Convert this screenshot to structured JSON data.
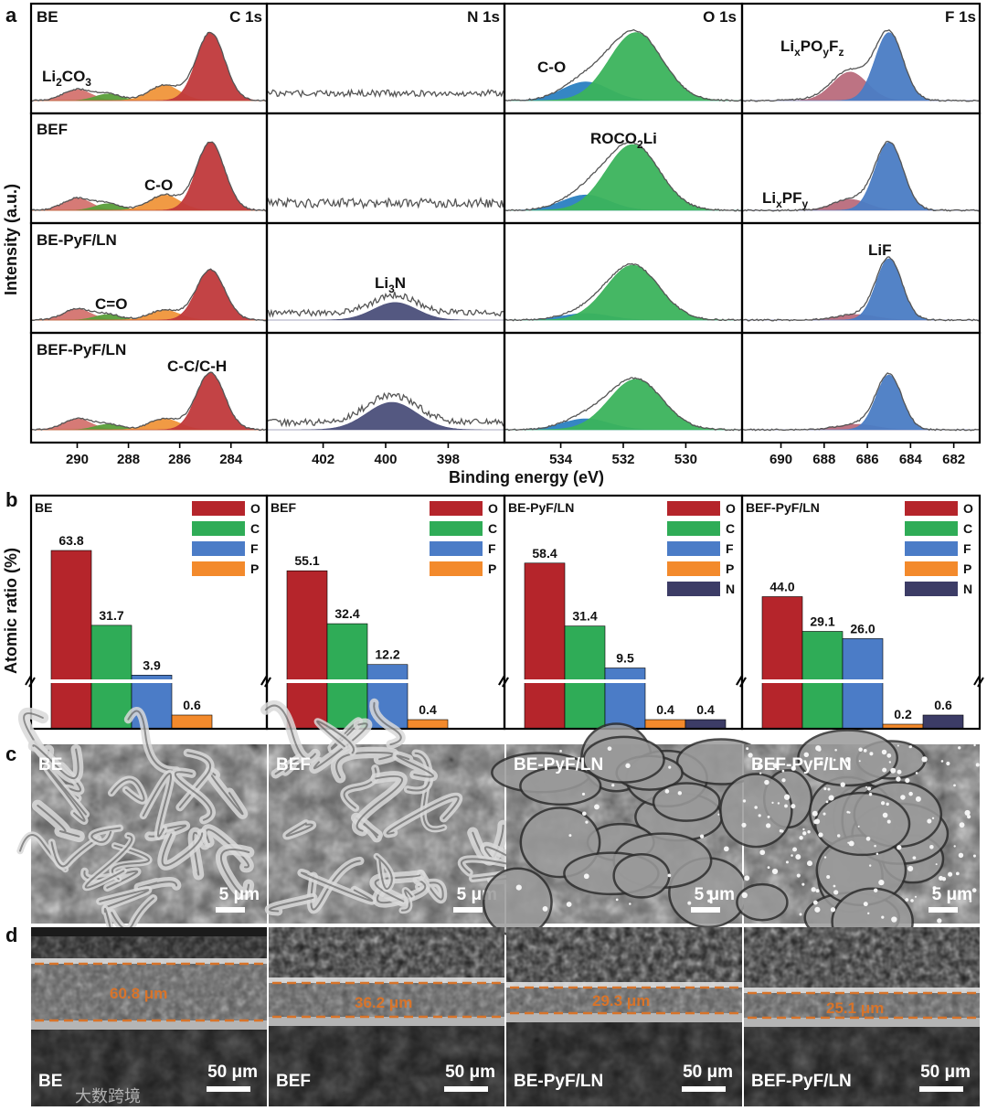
{
  "panels": {
    "a": "a",
    "b": "b",
    "c": "c",
    "d": "d"
  },
  "xps": {
    "y_axis_label": "Intensity (a.u.)",
    "x_axis_label": "Binding energy (eV)",
    "rows": [
      "BE",
      "BEF",
      "BE-PyF/LN",
      "BEF-PyF/LN"
    ],
    "columns": [
      {
        "element": "C 1s",
        "xlim": [
          291.8,
          282.6
        ],
        "ticks": [
          290,
          288,
          286,
          284
        ]
      },
      {
        "element": "N 1s",
        "xlim": [
          403.8,
          396.2
        ],
        "ticks": [
          402,
          400,
          398
        ]
      },
      {
        "element": "O 1s",
        "xlim": [
          535.8,
          528.2
        ],
        "ticks": [
          534,
          532,
          530
        ]
      },
      {
        "element": "F 1s",
        "xlim": [
          691.8,
          680.8
        ],
        "ticks": [
          690,
          688,
          686,
          684,
          682
        ]
      }
    ],
    "annotations": {
      "c_li2co3": "Li",
      "c_li2co3_sub": "2",
      "c_li2co3_post": "CO",
      "c_li2co3_sub2": "3",
      "c_co": "C-O",
      "c_ceqo": "C=O",
      "c_cc": "C-C/C-H",
      "n_li3n": "Li",
      "n_li3n_sub": "3",
      "n_li3n_post": "N",
      "o_co": "C-O",
      "o_roco": "ROCO",
      "o_roco_sub": "2",
      "o_roco_post": "Li",
      "f_lipoyfz_a": "Li",
      "f_lipoyfz_x": "x",
      "f_lipoyfz_b": "PO",
      "f_lipoyfz_y": "y",
      "f_lipoyfz_c": "F",
      "f_lipoyfz_z": "z",
      "f_lipf_a": "Li",
      "f_lipf_x": "x",
      "f_lipf_b": "PF",
      "f_lipf_y": "y",
      "f_lif": "LiF"
    },
    "peak_colors": {
      "carbonate": "#d4736f",
      "c_eq_o": "#5a9e3a",
      "c_o": "#f0953a",
      "c_c": "#c0393b",
      "n": "#4b4f7a",
      "o_co": "#2a7fc1",
      "o_roco": "#3bb35c",
      "f_lipoyfz": "#b96b7c",
      "f_lif": "#4a7cc4",
      "envelope": "#555555"
    }
  },
  "chart_data": {
    "type": "bar",
    "ylabel": "Atomic ratio (%)",
    "y_axis": "broken",
    "groups": [
      {
        "name": "BE",
        "categories": [
          "O",
          "C",
          "F",
          "P"
        ],
        "values": [
          63.8,
          31.7,
          3.9,
          0.6
        ],
        "labels": [
          "63.8",
          "31.7",
          "3.9",
          "0.6"
        ]
      },
      {
        "name": "BEF",
        "categories": [
          "O",
          "C",
          "F",
          "P"
        ],
        "values": [
          55.1,
          32.4,
          12.2,
          0.4
        ],
        "labels": [
          "55.1",
          "32.4",
          "12.2",
          "0.4"
        ]
      },
      {
        "name": "BE-PyF/LN",
        "categories": [
          "O",
          "C",
          "F",
          "P",
          "N"
        ],
        "values": [
          58.4,
          31.4,
          9.5,
          0.4,
          0.4
        ],
        "labels": [
          "58.4",
          "31.4",
          "9.5",
          "0.4",
          "0.4"
        ]
      },
      {
        "name": "BEF-PyF/LN",
        "categories": [
          "O",
          "C",
          "F",
          "P",
          "N"
        ],
        "values": [
          44.0,
          29.1,
          26.0,
          0.2,
          0.6
        ],
        "labels": [
          "44.0",
          "29.1",
          "26.0",
          "0.2",
          "0.6"
        ]
      }
    ],
    "colors": {
      "O": "#b5252b",
      "C": "#2fac57",
      "F": "#4b7cc7",
      "P": "#f38a2c",
      "N": "#3c3c66"
    }
  },
  "sem_top": {
    "labels": [
      "BE",
      "BEF",
      "BE-PyF/LN",
      "BEF-PyF/LN"
    ],
    "scale_bar": "5 μm"
  },
  "sem_cross": {
    "labels": [
      "BE",
      "BEF",
      "BE-PyF/LN",
      "BEF-PyF/LN"
    ],
    "thickness": [
      "60.8 μm",
      "36.2 μm",
      "29.3 μm",
      "25.1 μm"
    ],
    "scale_bar": "50 μm",
    "watermark": "大数跨境"
  }
}
